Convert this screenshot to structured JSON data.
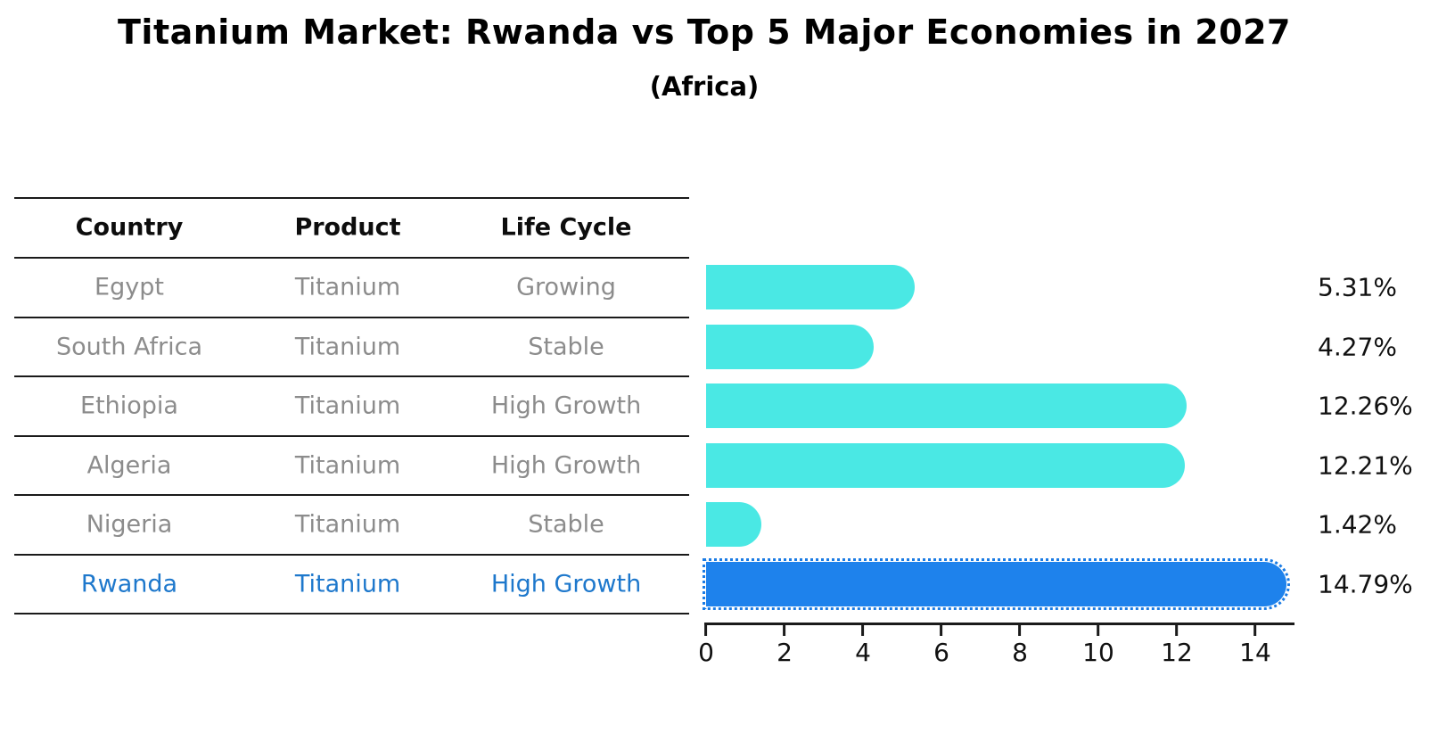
{
  "title": "Titanium Market: Rwanda vs Top 5 Major Economies in 2027",
  "subtitle": "(Africa)",
  "table": {
    "headers": [
      "Country",
      "Product",
      "Life Cycle"
    ],
    "rows": [
      {
        "country": "Egypt",
        "product": "Titanium",
        "life_cycle": "Growing"
      },
      {
        "country": "South Africa",
        "product": "Titanium",
        "life_cycle": "Stable"
      },
      {
        "country": "Ethiopia",
        "product": "Titanium",
        "life_cycle": "High Growth"
      },
      {
        "country": "Algeria",
        "product": "Titanium",
        "life_cycle": "High Growth"
      },
      {
        "country": "Nigeria",
        "product": "Titanium",
        "life_cycle": "Stable"
      },
      {
        "country": "Rwanda",
        "product": "Titanium",
        "life_cycle": "High Growth"
      }
    ],
    "highlight_row": "Rwanda"
  },
  "chart_data": {
    "type": "bar",
    "orientation": "horizontal",
    "title": "Titanium Market: Rwanda vs Top 5 Major Economies in 2027",
    "subtitle": "(Africa)",
    "categories": [
      "Egypt",
      "South Africa",
      "Ethiopia",
      "Algeria",
      "Nigeria",
      "Rwanda"
    ],
    "values": [
      5.31,
      4.27,
      12.26,
      12.21,
      1.42,
      14.79
    ],
    "value_labels": [
      "5.31%",
      "4.27%",
      "12.26%",
      "12.21%",
      "1.42%",
      "14.79%"
    ],
    "xticks": [
      "0",
      "2",
      "4",
      "6",
      "8",
      "10",
      "12",
      "14"
    ],
    "xlim": [
      0,
      15
    ],
    "grid": false,
    "legend": false,
    "bar_color": "#4AE8E4",
    "highlight_color": "#1E82EC",
    "highlight_index": 5,
    "highlight_text_color": "#1E78CC",
    "row_text_color": "#8C8C8C",
    "axis_color": "#1a1a1a"
  }
}
